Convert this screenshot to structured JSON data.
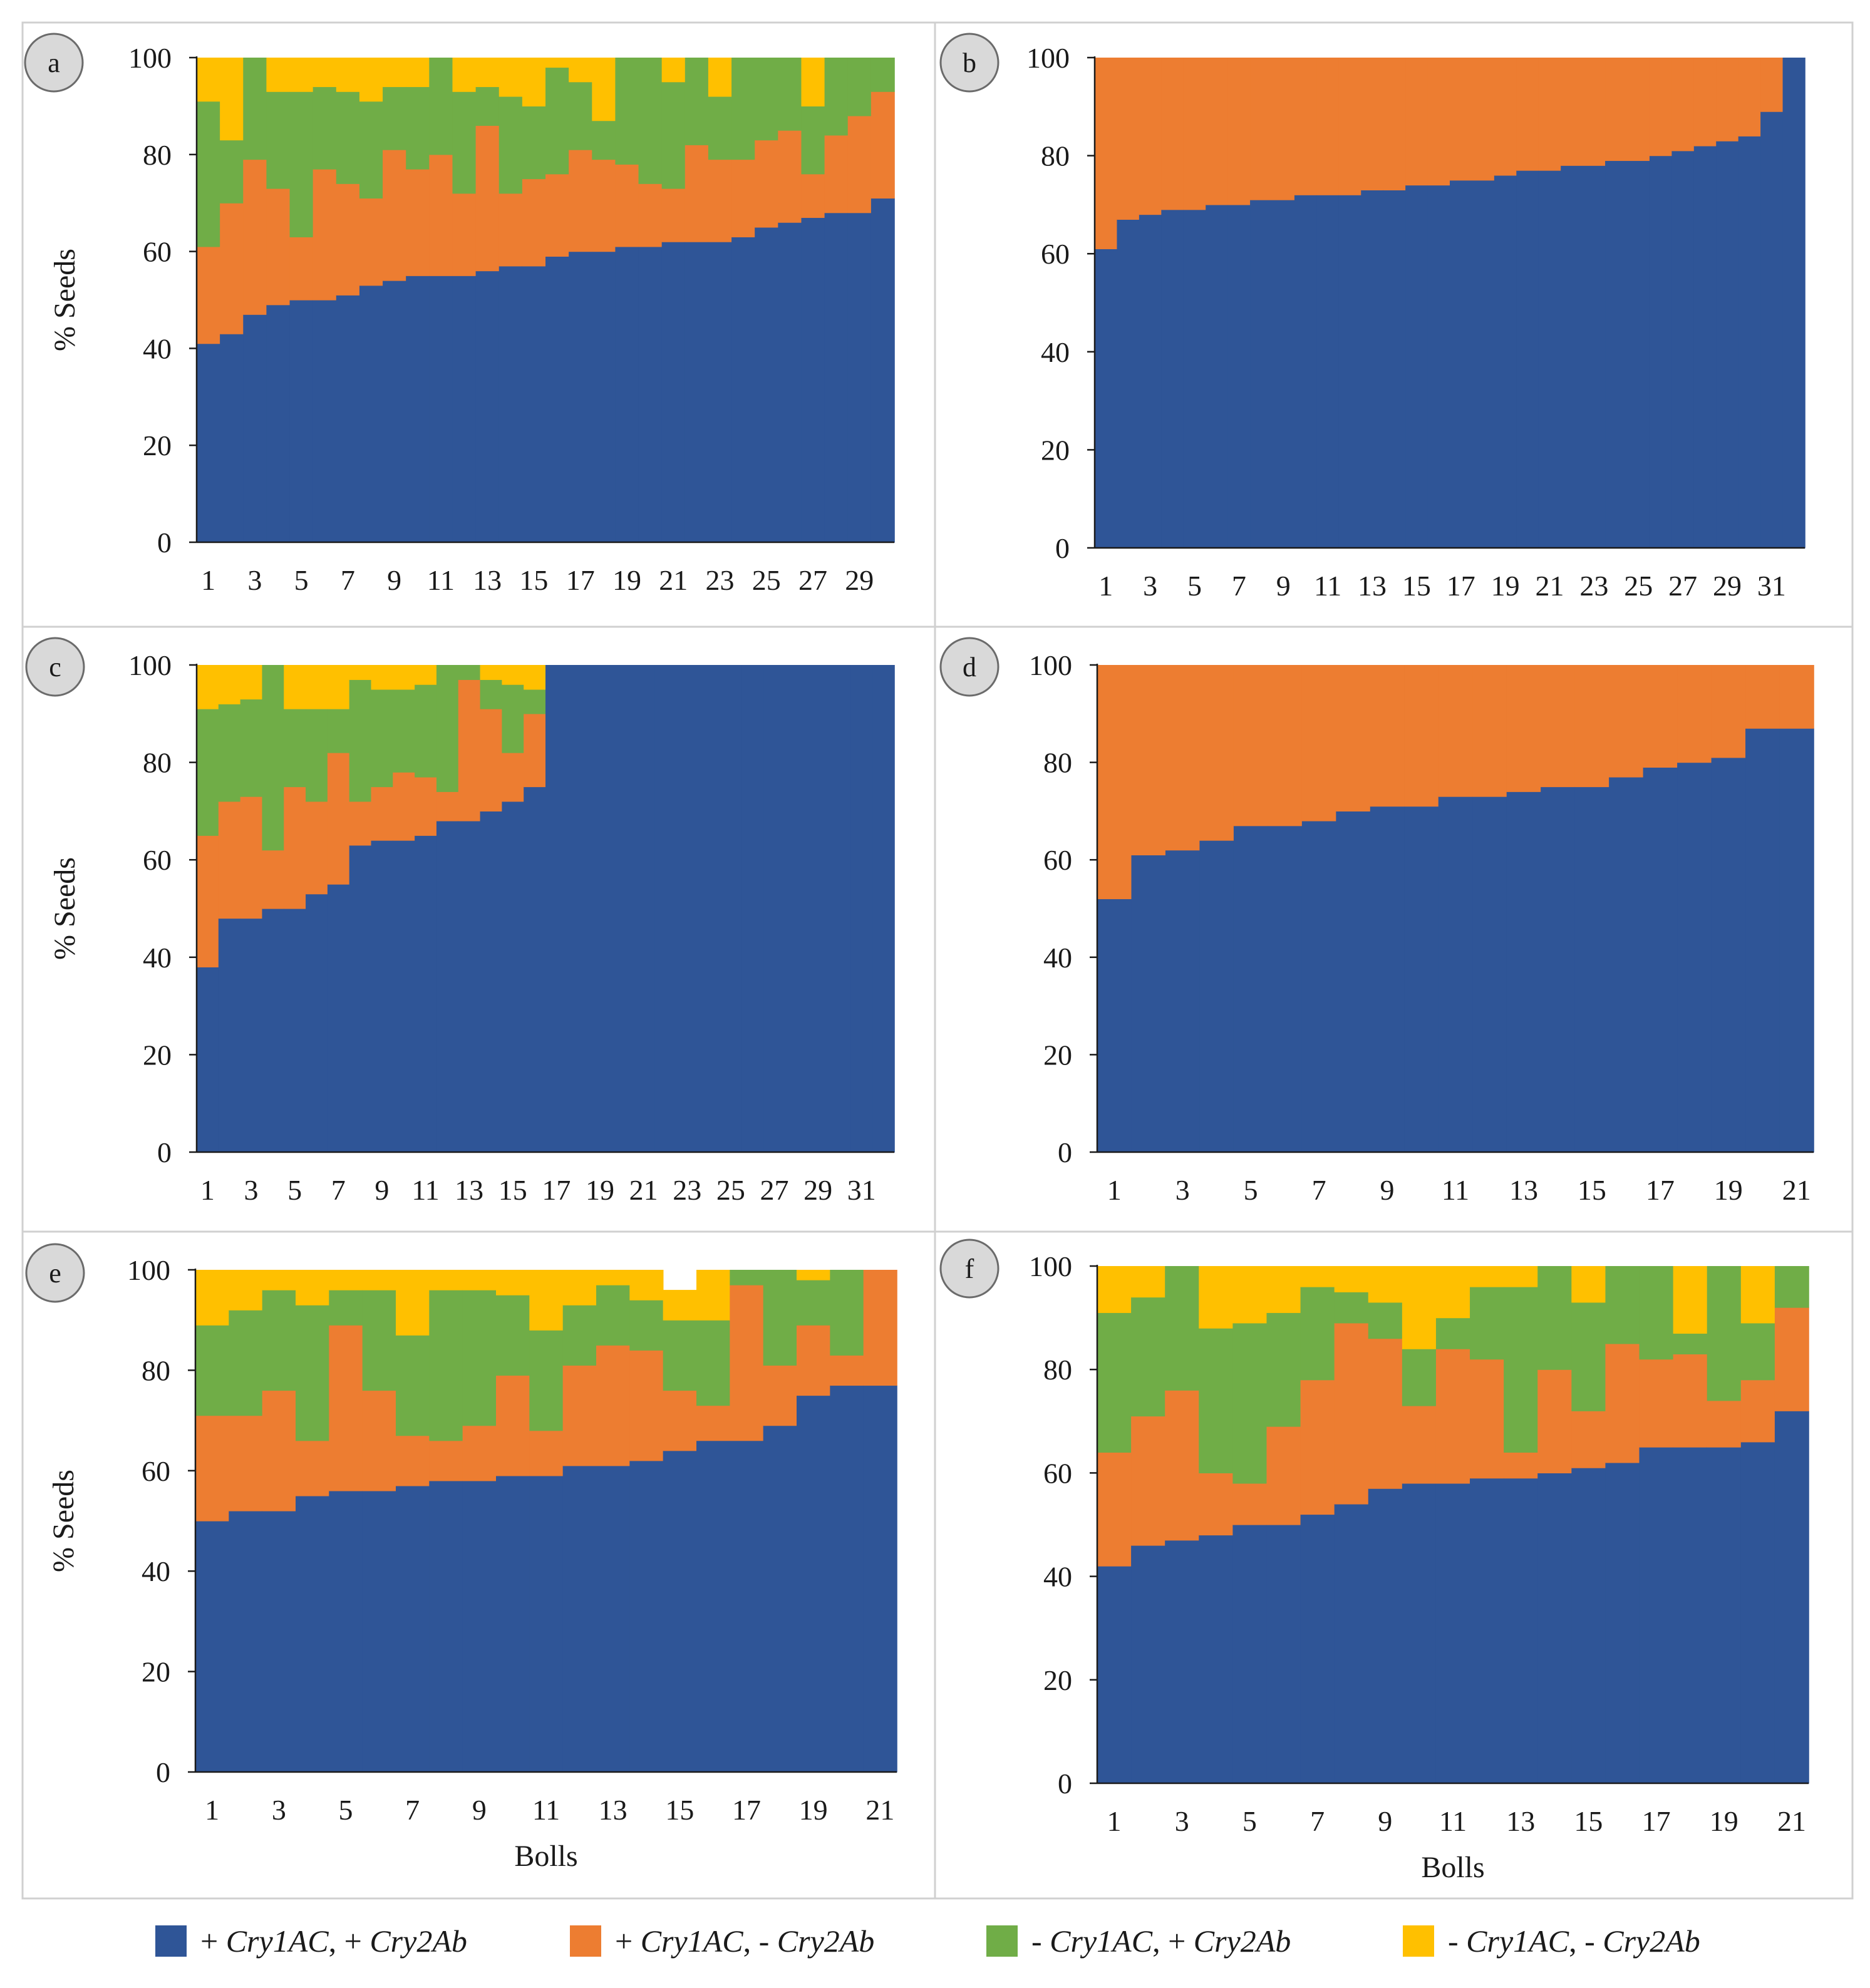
{
  "figure": {
    "legend": [
      {
        "label": "+ Cry1AC, + Cry2Ab",
        "color": "#2F5597"
      },
      {
        "label": "+ Cry1AC, - Cry2Ab",
        "color": "#ED7D31"
      },
      {
        "label": "- Cry1AC, + Cry2Ab",
        "color": "#70AD47"
      },
      {
        "label": "- Cry1AC, - Cry2Ab",
        "color": "#FFC000"
      }
    ]
  },
  "chart_data": [
    {
      "panel": "a",
      "type": "bar",
      "stacked": true,
      "ylabel": "% Seeds",
      "xlabel": "",
      "ylim": [
        0,
        100
      ],
      "yticks": [
        0,
        20,
        40,
        60,
        80,
        100
      ],
      "xtick_labels": [
        "1",
        "3",
        "5",
        "7",
        "9",
        "11",
        "13",
        "15",
        "17",
        "19",
        "21",
        "23",
        "25",
        "27",
        "29"
      ],
      "n_bolls": 30,
      "series": [
        {
          "name": "+ Cry1AC, + Cry2Ab",
          "values": [
            41,
            43,
            47,
            49,
            50,
            50,
            51,
            53,
            54,
            55,
            55,
            55,
            56,
            57,
            57,
            59,
            60,
            60,
            61,
            61,
            62,
            62,
            62,
            63,
            65,
            66,
            67,
            68,
            68,
            71
          ]
        },
        {
          "name": "+ Cry1AC, - Cry2Ab",
          "values": [
            20,
            27,
            32,
            24,
            13,
            27,
            23,
            18,
            27,
            22,
            25,
            17,
            30,
            15,
            18,
            17,
            21,
            19,
            17,
            13,
            11,
            20,
            17,
            16,
            18,
            19,
            9,
            16,
            20,
            22
          ]
        },
        {
          "name": "- Cry1AC, + Cry2Ab",
          "values": [
            30,
            13,
            21,
            20,
            30,
            17,
            19,
            20,
            13,
            17,
            20,
            21,
            8,
            20,
            15,
            22,
            14,
            8,
            22,
            26,
            22,
            18,
            13,
            21,
            17,
            15,
            14,
            16,
            12,
            7
          ]
        },
        {
          "name": "- Cry1AC, - Cry2Ab",
          "values": [
            9,
            17,
            0,
            7,
            7,
            6,
            7,
            9,
            6,
            6,
            0,
            7,
            6,
            8,
            10,
            2,
            5,
            13,
            0,
            0,
            5,
            0,
            8,
            0,
            0,
            0,
            10,
            0,
            0,
            0
          ]
        }
      ]
    },
    {
      "panel": "b",
      "type": "bar",
      "stacked": true,
      "ylabel": "",
      "xlabel": "",
      "ylim": [
        0,
        100
      ],
      "yticks": [
        0,
        20,
        40,
        60,
        80,
        100
      ],
      "xtick_labels": [
        "1",
        "3",
        "5",
        "7",
        "9",
        "11",
        "13",
        "15",
        "17",
        "19",
        "21",
        "23",
        "25",
        "27",
        "29",
        "31"
      ],
      "n_bolls": 32,
      "series": [
        {
          "name": "+ Cry1AC, + Cry2Ab",
          "values": [
            61,
            67,
            68,
            69,
            69,
            70,
            70,
            71,
            71,
            72,
            72,
            72,
            73,
            73,
            74,
            74,
            75,
            75,
            76,
            77,
            77,
            78,
            78,
            79,
            79,
            80,
            81,
            82,
            83,
            84,
            89,
            100
          ]
        },
        {
          "name": "+ Cry1AC, - Cry2Ab",
          "values": [
            39,
            33,
            32,
            31,
            31,
            30,
            30,
            29,
            29,
            28,
            28,
            28,
            27,
            27,
            26,
            26,
            25,
            25,
            24,
            23,
            23,
            22,
            22,
            21,
            21,
            20,
            19,
            18,
            17,
            16,
            11,
            0
          ]
        },
        {
          "name": "- Cry1AC, + Cry2Ab",
          "values": [
            0,
            0,
            0,
            0,
            0,
            0,
            0,
            0,
            0,
            0,
            0,
            0,
            0,
            0,
            0,
            0,
            0,
            0,
            0,
            0,
            0,
            0,
            0,
            0,
            0,
            0,
            0,
            0,
            0,
            0,
            0,
            0
          ]
        },
        {
          "name": "- Cry1AC, - Cry2Ab",
          "values": [
            0,
            0,
            0,
            0,
            0,
            0,
            0,
            0,
            0,
            0,
            0,
            0,
            0,
            0,
            0,
            0,
            0,
            0,
            0,
            0,
            0,
            0,
            0,
            0,
            0,
            0,
            0,
            0,
            0,
            0,
            0,
            0
          ]
        }
      ]
    },
    {
      "panel": "c",
      "type": "bar",
      "stacked": true,
      "ylabel": "% Seeds",
      "xlabel": "",
      "ylim": [
        0,
        100
      ],
      "yticks": [
        0,
        20,
        40,
        60,
        80,
        100
      ],
      "xtick_labels": [
        "1",
        "3",
        "5",
        "7",
        "9",
        "11",
        "13",
        "15",
        "17",
        "19",
        "21",
        "23",
        "25",
        "27",
        "29",
        "31"
      ],
      "n_bolls": 32,
      "series": [
        {
          "name": "+ Cry1AC, + Cry2Ab",
          "values": [
            38,
            48,
            48,
            50,
            50,
            53,
            55,
            63,
            64,
            64,
            65,
            68,
            68,
            70,
            72,
            75,
            100,
            100,
            100,
            100,
            100,
            100,
            100,
            100,
            100,
            100,
            100,
            100,
            100,
            100,
            100,
            100
          ]
        },
        {
          "name": "+ Cry1AC, - Cry2Ab",
          "values": [
            27,
            24,
            25,
            12,
            25,
            19,
            27,
            9,
            11,
            14,
            12,
            6,
            29,
            21,
            10,
            15,
            0,
            0,
            0,
            0,
            0,
            0,
            0,
            0,
            0,
            0,
            0,
            0,
            0,
            0,
            0,
            0
          ]
        },
        {
          "name": "- Cry1AC, + Cry2Ab",
          "values": [
            26,
            20,
            20,
            38,
            16,
            19,
            9,
            25,
            20,
            17,
            19,
            26,
            3,
            6,
            14,
            5,
            0,
            0,
            0,
            0,
            0,
            0,
            0,
            0,
            0,
            0,
            0,
            0,
            0,
            0,
            0,
            0
          ]
        },
        {
          "name": "- Cry1AC, - Cry2Ab",
          "values": [
            9,
            8,
            7,
            0,
            9,
            9,
            9,
            3,
            5,
            5,
            4,
            0,
            0,
            3,
            4,
            5,
            0,
            0,
            0,
            0,
            0,
            0,
            0,
            0,
            0,
            0,
            0,
            0,
            0,
            0,
            0,
            0
          ]
        }
      ]
    },
    {
      "panel": "d",
      "type": "bar",
      "stacked": true,
      "ylabel": "",
      "xlabel": "",
      "ylim": [
        0,
        100
      ],
      "yticks": [
        0,
        20,
        40,
        60,
        80,
        100
      ],
      "xtick_labels": [
        "1",
        "3",
        "5",
        "7",
        "9",
        "11",
        "13",
        "15",
        "17",
        "19",
        "21"
      ],
      "n_bolls": 21,
      "series": [
        {
          "name": "+ Cry1AC, + Cry2Ab",
          "values": [
            52,
            61,
            62,
            64,
            67,
            67,
            68,
            70,
            71,
            71,
            73,
            73,
            74,
            75,
            75,
            77,
            79,
            80,
            81,
            87,
            87
          ]
        },
        {
          "name": "+ Cry1AC, - Cry2Ab",
          "values": [
            48,
            39,
            38,
            36,
            33,
            33,
            32,
            30,
            29,
            29,
            27,
            27,
            26,
            25,
            25,
            23,
            21,
            20,
            19,
            13,
            13
          ]
        },
        {
          "name": "- Cry1AC, + Cry2Ab",
          "values": [
            0,
            0,
            0,
            0,
            0,
            0,
            0,
            0,
            0,
            0,
            0,
            0,
            0,
            0,
            0,
            0,
            0,
            0,
            0,
            0,
            0
          ]
        },
        {
          "name": "- Cry1AC, - Cry2Ab",
          "values": [
            0,
            0,
            0,
            0,
            0,
            0,
            0,
            0,
            0,
            0,
            0,
            0,
            0,
            0,
            0,
            0,
            0,
            0,
            0,
            0,
            0
          ]
        }
      ]
    },
    {
      "panel": "e",
      "type": "bar",
      "stacked": true,
      "ylabel": "% Seeds",
      "xlabel": "Bolls",
      "ylim": [
        0,
        100
      ],
      "yticks": [
        0,
        20,
        40,
        60,
        80,
        100
      ],
      "xtick_labels": [
        "1",
        "3",
        "5",
        "7",
        "9",
        "11",
        "13",
        "15",
        "17",
        "19",
        "21"
      ],
      "n_bolls": 21,
      "series": [
        {
          "name": "+ Cry1AC, + Cry2Ab",
          "values": [
            50,
            52,
            52,
            55,
            56,
            56,
            57,
            58,
            58,
            59,
            59,
            61,
            61,
            62,
            64,
            66,
            66,
            69,
            75,
            77,
            77
          ]
        },
        {
          "name": "+ Cry1AC, - Cry2Ab",
          "values": [
            21,
            19,
            24,
            11,
            33,
            20,
            10,
            8,
            11,
            20,
            9,
            20,
            24,
            22,
            12,
            7,
            31,
            12,
            14,
            6,
            23
          ]
        },
        {
          "name": "- Cry1AC, + Cry2Ab",
          "values": [
            18,
            21,
            20,
            27,
            7,
            20,
            20,
            30,
            27,
            16,
            20,
            12,
            12,
            10,
            14,
            17,
            3,
            19,
            9,
            17,
            0
          ]
        },
        {
          "name": "- Cry1AC, - Cry2Ab",
          "values": [
            11,
            8,
            4,
            7,
            4,
            4,
            13,
            4,
            4,
            5,
            12,
            7,
            3,
            6,
            6,
            10,
            0,
            0,
            2,
            0,
            0
          ]
        }
      ]
    },
    {
      "panel": "f",
      "type": "bar",
      "stacked": true,
      "ylabel": "",
      "xlabel": "Bolls",
      "ylim": [
        0,
        100
      ],
      "yticks": [
        0,
        20,
        40,
        60,
        80,
        100
      ],
      "xtick_labels": [
        "1",
        "3",
        "5",
        "7",
        "9",
        "11",
        "13",
        "15",
        "17",
        "19",
        "21"
      ],
      "n_bolls": 21,
      "series": [
        {
          "name": "+ Cry1AC, + Cry2Ab",
          "values": [
            42,
            46,
            47,
            48,
            50,
            50,
            52,
            54,
            57,
            58,
            58,
            59,
            59,
            60,
            61,
            62,
            65,
            65,
            65,
            66,
            72
          ]
        },
        {
          "name": "+ Cry1AC, - Cry2Ab",
          "values": [
            22,
            25,
            29,
            12,
            8,
            19,
            26,
            35,
            29,
            15,
            26,
            23,
            5,
            20,
            11,
            23,
            17,
            18,
            9,
            12,
            20
          ]
        },
        {
          "name": "- Cry1AC, + Cry2Ab",
          "values": [
            27,
            23,
            24,
            28,
            31,
            22,
            18,
            6,
            7,
            11,
            6,
            14,
            32,
            20,
            21,
            15,
            18,
            4,
            26,
            11,
            8
          ]
        },
        {
          "name": "- Cry1AC, - Cry2Ab",
          "values": [
            9,
            6,
            0,
            12,
            11,
            9,
            4,
            5,
            7,
            16,
            10,
            4,
            4,
            0,
            7,
            0,
            0,
            13,
            0,
            11,
            0
          ]
        }
      ]
    }
  ]
}
